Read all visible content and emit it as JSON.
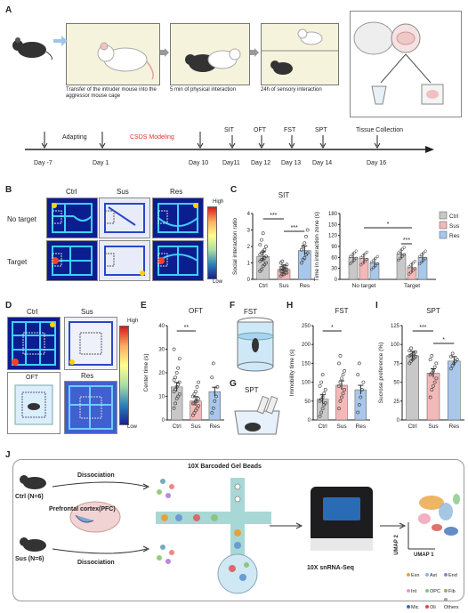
{
  "panels": {
    "A": "A",
    "B": "B",
    "C": "C",
    "D": "D",
    "E": "E",
    "F": "F",
    "G": "G",
    "H": "H",
    "I": "I",
    "J": "J"
  },
  "panelA": {
    "step1": "Transfer of the intruder mouse into the aggressor mouse cage",
    "step2": "5 min of physical interaction",
    "step3": "24h of sensory interaction"
  },
  "timeline": {
    "adapting": "Adapting",
    "csds": "CSDS Modeling",
    "top_events": [
      "SIT",
      "OFT",
      "FST",
      "SPT",
      "Tissue Collection"
    ],
    "days": [
      "Day -7",
      "Day 1",
      "Day 10",
      "Day11",
      "Day 12",
      "Day 13",
      "Day 14",
      "Day 16"
    ]
  },
  "panelB": {
    "cols": [
      "Ctrl",
      "Sus",
      "Res"
    ],
    "rows": [
      "No target",
      "Target"
    ],
    "high": "High",
    "low": "Low"
  },
  "panelD": {
    "labels": [
      "Ctrl",
      "Sus",
      "OFT",
      "Res"
    ],
    "high": "High",
    "low": "Low"
  },
  "panelF": "FST",
  "panelG": "SPT",
  "panelJ": {
    "ctrl": "Ctrl (N=6)",
    "sus": "Sus (N=6)",
    "pfc": "Prefrontal cortex(PFC)",
    "dissociation": "Dissociation",
    "beads": "10X Barcoded Gel Beads",
    "seq": "10X snRNA-Seq",
    "umap1": "UMAP 1",
    "umap2": "UMAP 2",
    "legend": [
      "Exn",
      "Ast",
      "End",
      "Int",
      "OPC",
      "Fib",
      "Mic",
      "Oli",
      "Others"
    ],
    "legend_colors": [
      "#e8a33d",
      "#8fb8de",
      "#9b7fc0",
      "#f29bb5",
      "#7fc97f",
      "#b5a06b",
      "#3d6fb6",
      "#d94c4c",
      "#a0a0a0"
    ]
  },
  "colors": {
    "ctrl": "#c8c8c8",
    "sus": "#f3b8b8",
    "res": "#a9c7ea",
    "csds": "#e0362c"
  },
  "chart_data": [
    {
      "type": "bar",
      "title": "SIT",
      "ylabel": "Social interaction ratio",
      "categories": [
        "Ctrl",
        "Sus",
        "Res"
      ],
      "values": [
        1.4,
        0.6,
        1.75
      ],
      "ylim": [
        0,
        4
      ],
      "yticks": [
        0,
        1,
        2,
        3,
        4
      ],
      "points": [
        [
          0.5,
          0.6,
          0.8,
          0.9,
          1.0,
          1.1,
          1.2,
          1.2,
          1.3,
          1.4,
          1.5,
          1.6,
          1.7,
          1.8,
          2.0,
          2.1,
          2.4,
          2.8
        ],
        [
          0.2,
          0.3,
          0.3,
          0.4,
          0.4,
          0.5,
          0.5,
          0.6,
          0.6,
          0.6,
          0.7,
          0.7,
          0.8,
          0.8,
          0.9,
          1.0,
          1.1
        ],
        [
          1.0,
          1.2,
          1.3,
          1.5,
          1.6,
          1.8,
          2.0,
          2.2,
          2.6,
          3.0
        ]
      ],
      "sig": [
        {
          "pair": [
            "Ctrl",
            "Sus"
          ],
          "label": "***"
        },
        {
          "pair": [
            "Sus",
            "Res"
          ],
          "label": "***"
        }
      ]
    },
    {
      "type": "bar",
      "ylabel": "Time in interaction zone (s)",
      "categories": [
        "No target",
        "Target"
      ],
      "series": [
        {
          "name": "Ctrl",
          "values": [
            60,
            70
          ]
        },
        {
          "name": "Sus",
          "values": [
            57,
            32
          ]
        },
        {
          "name": "Res",
          "values": [
            45,
            60
          ]
        }
      ],
      "ylim": [
        0,
        180
      ],
      "yticks": [
        0,
        30,
        60,
        90,
        120,
        150,
        180
      ],
      "sig": [
        {
          "label": "*",
          "span": "Sus No target vs Sus Target"
        },
        {
          "label": "***",
          "span": "Ctrl vs Sus Target"
        }
      ]
    },
    {
      "type": "bar",
      "title": "OFT",
      "ylabel": "Center time (s)",
      "categories": [
        "Ctrl",
        "Sus",
        "Res"
      ],
      "values": [
        14,
        8,
        12
      ],
      "ylim": [
        0,
        40
      ],
      "yticks": [
        0,
        10,
        20,
        30,
        40
      ],
      "points": [
        [
          5,
          7,
          9,
          10,
          11,
          12,
          13,
          14,
          15,
          16,
          17,
          18,
          20,
          22,
          26,
          30
        ],
        [
          2,
          3,
          4,
          5,
          6,
          7,
          7,
          8,
          8,
          9,
          10,
          11,
          12,
          14,
          16
        ],
        [
          3,
          5,
          8,
          10,
          14,
          18,
          24
        ]
      ],
      "sig": [
        {
          "pair": [
            "Ctrl",
            "Sus"
          ],
          "label": "**"
        }
      ]
    },
    {
      "type": "bar",
      "title": "FST",
      "ylabel": "Immobility time (s)",
      "categories": [
        "Ctrl",
        "Sus",
        "Res"
      ],
      "values": [
        55,
        92,
        80
      ],
      "ylim": [
        0,
        250
      ],
      "yticks": [
        0,
        50,
        100,
        150,
        200,
        250
      ],
      "points": [
        [
          10,
          20,
          30,
          40,
          45,
          50,
          55,
          60,
          70,
          80,
          90,
          100,
          120
        ],
        [
          30,
          50,
          60,
          70,
          80,
          90,
          100,
          110,
          120,
          130,
          150,
          170
        ],
        [
          20,
          40,
          60,
          80,
          100,
          120,
          150
        ]
      ],
      "sig": [
        {
          "pair": [
            "Ctrl",
            "Sus"
          ],
          "label": "*"
        }
      ]
    },
    {
      "type": "bar",
      "title": "SPT",
      "ylabel": "Sucrose preference (%)",
      "categories": [
        "Ctrl",
        "Sus",
        "Res"
      ],
      "values": [
        85,
        62,
        78
      ],
      "ylim": [
        0,
        125
      ],
      "yticks": [
        0,
        25,
        50,
        75,
        100,
        125
      ],
      "points": [
        [
          75,
          78,
          80,
          82,
          84,
          85,
          86,
          87,
          88,
          90,
          92,
          95
        ],
        [
          30,
          40,
          45,
          50,
          55,
          60,
          62,
          65,
          70,
          75,
          80,
          85
        ],
        [
          68,
          72,
          75,
          78,
          80,
          84,
          88
        ]
      ],
      "sig": [
        {
          "pair": [
            "Ctrl",
            "Sus"
          ],
          "label": "***"
        },
        {
          "pair": [
            "Sus",
            "Res"
          ],
          "label": "*"
        }
      ]
    }
  ]
}
